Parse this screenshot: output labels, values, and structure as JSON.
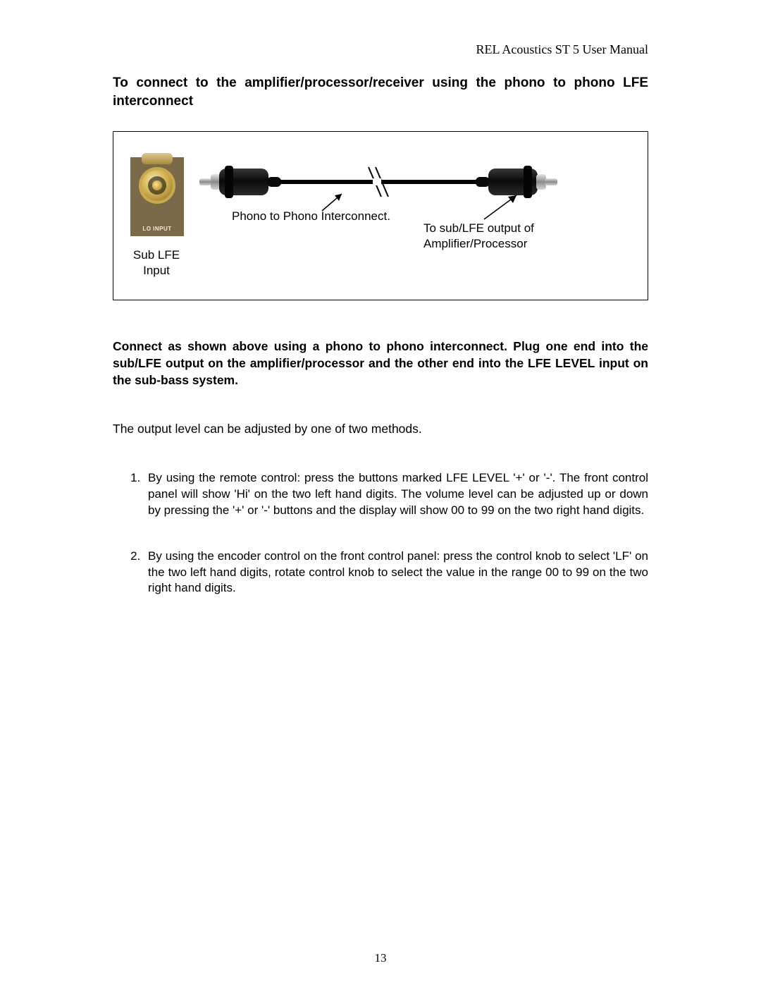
{
  "header": {
    "text": "REL Acoustics ST 5 User Manual"
  },
  "title": "To connect to the amplifier/processor/receiver using the phono to phono LFE interconnect",
  "diagram": {
    "border_color": "#000000",
    "jack": {
      "background_color": "#7a6a4a",
      "ring_gradient": [
        "#dcca90",
        "#a88a3c"
      ],
      "gold_gradient": [
        "#f6e9b0",
        "#d9b85c",
        "#8c6b1f"
      ],
      "label": "LO INPUT",
      "label_color": "#f2ecd8"
    },
    "sub_lfe_label": "Sub LFE\nInput",
    "phono_label": "Phono to Phono Interconnect.",
    "dest_label": "To sub/LFE output of\nAmplifier/Processor",
    "plug": {
      "body_color": "#151515",
      "tip_gradient": [
        "#e2e2e2",
        "#6f6f6f"
      ],
      "cable_color": "#000000",
      "cable_width": 4
    },
    "arrow_color": "#000000"
  },
  "paragraphs": {
    "p1": "Connect as shown above using a phono to phono interconnect.  Plug one end into the sub/LFE output on the amplifier/processor and the other end into the LFE LEVEL input on the sub-bass system.",
    "p2": "The output level can be adjusted by one of two methods."
  },
  "steps": [
    "By using the remote control:  press the buttons marked LFE LEVEL '+' or '-'. The front control panel will show 'Hi' on the two left hand digits.  The volume level can be adjusted up or down by pressing the '+' or '-' buttons and the display will show 00 to 99 on the two right hand digits.",
    "By using the encoder control on the front control panel: press the control knob to select 'LF' on the two left hand digits, rotate control knob to select the value in the range 00 to 99 on the two right hand digits."
  ],
  "page_number": "13",
  "typography": {
    "body_font": "Arial",
    "header_font": "Times New Roman",
    "title_fontsize_pt": 14,
    "body_fontsize_pt": 13,
    "label_fontsize_pt": 13
  },
  "colors": {
    "text": "#000000",
    "background": "#ffffff"
  }
}
